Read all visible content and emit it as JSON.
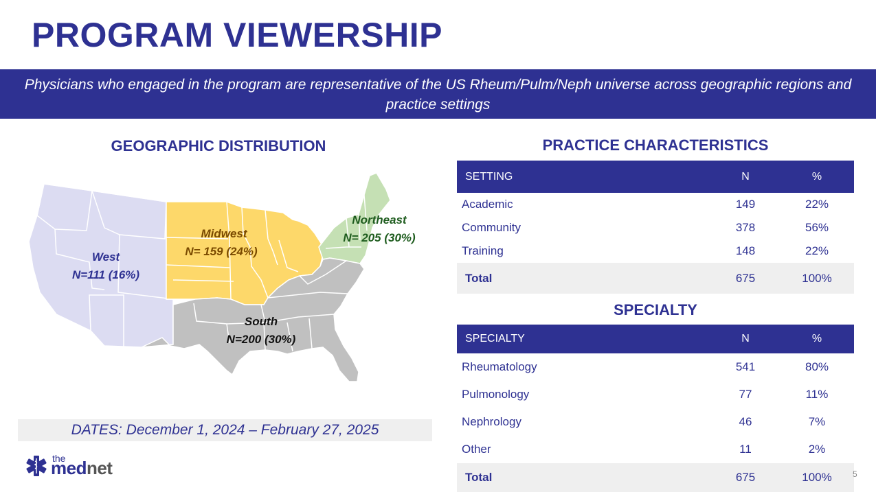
{
  "page": {
    "title": "PROGRAM VIEWERSHIP",
    "subtitle": "Physicians who engaged in the program are representative of the US Rheum/Pulm/Neph universe across geographic regions and practice settings",
    "page_number": "5"
  },
  "geography": {
    "title": "GEOGRAPHIC DISTRIBUTION",
    "regions": [
      {
        "name": "West",
        "count_label": "N=111 (16%)",
        "n": 111,
        "pct": 16,
        "color": "#dcdcf2",
        "label_color": "#2e3192"
      },
      {
        "name": "Midwest",
        "count_label": "N= 159 (24%)",
        "n": 159,
        "pct": 24,
        "color": "#fdd86a",
        "label_color": "#7a4a00"
      },
      {
        "name": "Northeast",
        "count_label": "N= 205 (30%)",
        "n": 205,
        "pct": 30,
        "color": "#c5e0b4",
        "label_color": "#1e5c1e"
      },
      {
        "name": "South",
        "count_label": "N=200 (30%)",
        "n": 200,
        "pct": 30,
        "color": "#c0c0c0",
        "label_color": "#111111"
      }
    ],
    "dates": "DATES: December 1, 2024 – February 27, 2025"
  },
  "practice": {
    "title": "PRACTICE CHARACTERISTICS",
    "headers": [
      "SETTING",
      "N",
      "%"
    ],
    "rows": [
      {
        "label": "Academic",
        "n": "149",
        "pct": "22%"
      },
      {
        "label": "Community",
        "n": "378",
        "pct": "56%"
      },
      {
        "label": "Training",
        "n": "148",
        "pct": "22%"
      }
    ],
    "total": {
      "label": "Total",
      "n": "675",
      "pct": "100%"
    }
  },
  "specialty": {
    "title": "SPECIALTY",
    "headers": [
      "SPECIALTY",
      "N",
      "%"
    ],
    "rows": [
      {
        "label": "Rheumatology",
        "n": "541",
        "pct": "80%"
      },
      {
        "label": "Pulmonology",
        "n": "77",
        "pct": "11%"
      },
      {
        "label": "Nephrology",
        "n": "46",
        "pct": "7%"
      },
      {
        "label": "Other",
        "n": "11",
        "pct": "2%"
      }
    ],
    "total": {
      "label": "Total",
      "n": "675",
      "pct": "100%"
    }
  },
  "logo": {
    "the": "the",
    "med": "med",
    "net": "net"
  },
  "colors": {
    "brand_navy": "#2e3192",
    "total_row_bg": "#efefef",
    "dates_bg": "#efefef"
  }
}
